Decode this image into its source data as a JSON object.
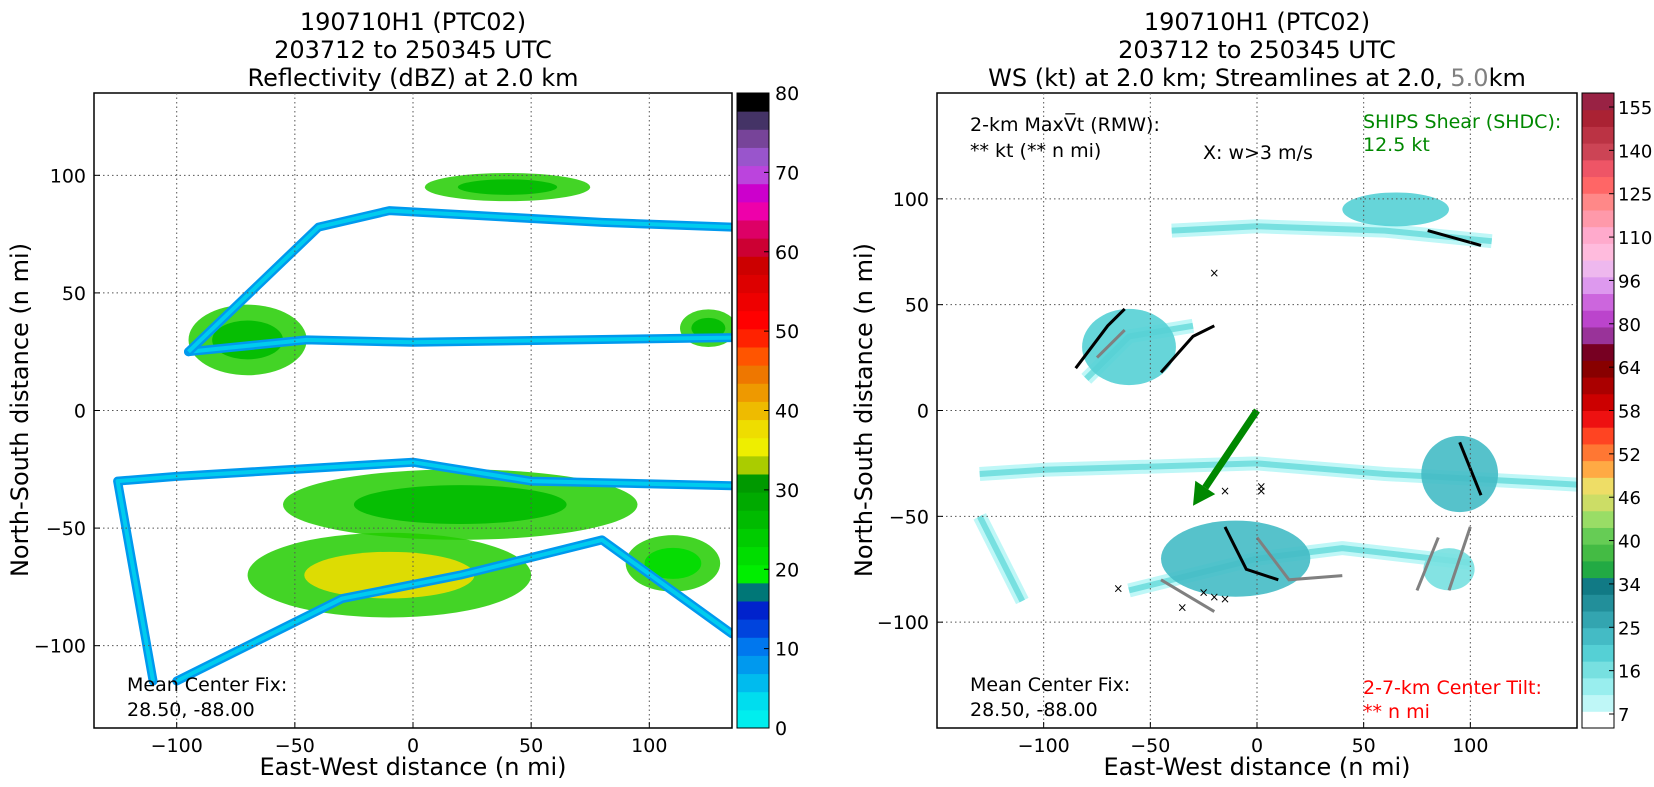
{
  "left_panel": {
    "title": [
      "190710H1 (PTC02)",
      "203712 to 250345 UTC",
      "Reflectivity (dBZ) at 2.0 km"
    ],
    "xlabel": "East-West distance (n mi)",
    "ylabel": "North-South distance (n mi)",
    "center_fix_label": "Mean Center Fix:",
    "center_fix_value": "28.50, -88.00",
    "xticks": [
      "−100",
      "−50",
      "0",
      "50",
      "100"
    ],
    "yticks": [
      "100",
      "50",
      "0",
      "−50",
      "−100"
    ],
    "colorbar_labels": [
      "80",
      "70",
      "60",
      "50",
      "40",
      "30",
      "20",
      "10",
      "0"
    ],
    "colorbar_colors": [
      "#00eeee",
      "#00ddee",
      "#00bbee",
      "#0099ee",
      "#0077ee",
      "#0044dd",
      "#0022cc",
      "#007777",
      "#00ee00",
      "#00dd00",
      "#00cc00",
      "#00bb00",
      "#00aa00",
      "#009900",
      "#aacc00",
      "#eeee00",
      "#eedd00",
      "#eebb00",
      "#ee9900",
      "#ee7700",
      "#ff5500",
      "#ff2200",
      "#ff0000",
      "#ee0000",
      "#dd0000",
      "#cc0000",
      "#cc0033",
      "#dd0066",
      "#ee00aa",
      "#cc00cc",
      "#bb44dd",
      "#9955cc",
      "#774499",
      "#443366",
      "#000000"
    ]
  },
  "right_panel": {
    "title_line1": "190710H1 (PTC02)",
    "title_line2": "203712 to 250345 UTC",
    "title_line3_a": "WS (kt) at 2.0 km; Streamlines at 2.0, ",
    "title_line3_b": "5.0",
    "title_line3_c": "km",
    "xlabel": "East-West distance (n mi)",
    "ylabel": "North-South distance (n mi)",
    "maxvt_line1": "2-km MaxV̅t (RMW):",
    "maxvt_line2": "** kt (** n mi)",
    "w_note": "X: w>3 m/s",
    "ships_label": "SHIPS Shear (SHDC):",
    "ships_value": "12.5 kt",
    "center_fix_label": "Mean Center Fix:",
    "center_fix_value": "28.50, -88.00",
    "tilt_label": "2-7-km Center Tilt:",
    "tilt_value": "** n mi",
    "xticks": [
      "−100",
      "−50",
      "0",
      "50",
      "100"
    ],
    "yticks": [
      "100",
      "50",
      "0",
      "−50",
      "−100"
    ],
    "colorbar_labels": [
      "155",
      "140",
      "125",
      "110",
      "96",
      "80",
      "64",
      "58",
      "52",
      "46",
      "40",
      "34",
      "25",
      "16",
      "7"
    ],
    "colorbar_colors": [
      "#ffffff",
      "#bff7f7",
      "#99eeee",
      "#77e0e0",
      "#55d0d5",
      "#44bbc5",
      "#33a5b0",
      "#228f9a",
      "#117a85",
      "#22aa44",
      "#44bb44",
      "#66cc55",
      "#99dd66",
      "#ccdd66",
      "#eedd66",
      "#ffaa44",
      "#ff7733",
      "#ff4422",
      "#ee1111",
      "#cc0000",
      "#aa0000",
      "#880000",
      "#770022",
      "#993399",
      "#bb44cc",
      "#cc66dd",
      "#dd99ee",
      "#eeb8ee",
      "#ffbbdd",
      "#ffaacc",
      "#ff99aa",
      "#ff8888",
      "#ff6666",
      "#ee5566",
      "#cc4455",
      "#bb3344",
      "#aa2233",
      "#992244"
    ],
    "shear_color": "#008800",
    "tilt_color": "#ff0000",
    "streamline_5km_color": "#808080"
  },
  "chart_data": [
    {
      "type": "heatmap",
      "title": "Reflectivity (dBZ) at 2.0 km",
      "xlabel": "East-West distance (n mi)",
      "ylabel": "North-South distance (n mi)",
      "xlim": [
        -135,
        135
      ],
      "ylim": [
        -135,
        135
      ],
      "colorbar_range": [
        0,
        80
      ],
      "grid": true,
      "flight_legs": [
        {
          "path": [
            [
              -110,
              -115
            ],
            [
              -125,
              -30
            ],
            [
              -100,
              -28
            ],
            [
              0,
              -22
            ],
            [
              50,
              -30
            ],
            [
              135,
              -32
            ]
          ]
        },
        {
          "path": [
            [
              -100,
              -115
            ],
            [
              -30,
              -80
            ],
            [
              20,
              -70
            ],
            [
              80,
              -55
            ],
            [
              135,
              -95
            ]
          ]
        },
        {
          "path": [
            [
              -95,
              25
            ],
            [
              -45,
              30
            ],
            [
              0,
              29
            ],
            [
              135,
              31
            ]
          ]
        },
        {
          "path": [
            [
              -95,
              25
            ],
            [
              -40,
              78
            ],
            [
              -10,
              85
            ],
            [
              80,
              80
            ],
            [
              135,
              78
            ]
          ]
        }
      ],
      "echo_regions": [
        {
          "cx": -70,
          "cy": 30,
          "rx": 25,
          "ry": 15,
          "dbz": 35
        },
        {
          "cx": 40,
          "cy": 95,
          "rx": 35,
          "ry": 6,
          "dbz": 30
        },
        {
          "cx": 20,
          "cy": -40,
          "rx": 75,
          "ry": 15,
          "dbz": 38
        },
        {
          "cx": -10,
          "cy": -70,
          "rx": 60,
          "ry": 18,
          "dbz": 42
        },
        {
          "cx": 110,
          "cy": -65,
          "rx": 20,
          "ry": 12,
          "dbz": 22
        },
        {
          "cx": 125,
          "cy": 35,
          "rx": 12,
          "ry": 8,
          "dbz": 30
        }
      ],
      "center_fix": "28.50, -88.00"
    },
    {
      "type": "heatmap",
      "title": "WS (kt) at 2.0 km; Streamlines at 2.0, 5.0km",
      "xlabel": "East-West distance (n mi)",
      "ylabel": "North-South distance (n mi)",
      "xlim": [
        -150,
        150
      ],
      "ylim": [
        -150,
        150
      ],
      "colorbar_range": [
        7,
        160
      ],
      "grid": true,
      "ships_shear_kt": 12.5,
      "shear_arrow": {
        "from": [
          0,
          0
        ],
        "to": [
          -30,
          -45
        ]
      },
      "w_gt_3_points": [
        [
          -20,
          65
        ],
        [
          -15,
          -38
        ],
        [
          2,
          -36
        ],
        [
          2,
          -38
        ],
        [
          -65,
          -84
        ],
        [
          -35,
          -93
        ],
        [
          -20,
          -88
        ],
        [
          -15,
          -89
        ],
        [
          -25,
          -86
        ]
      ],
      "center_fix": "28.50, -88.00"
    }
  ]
}
